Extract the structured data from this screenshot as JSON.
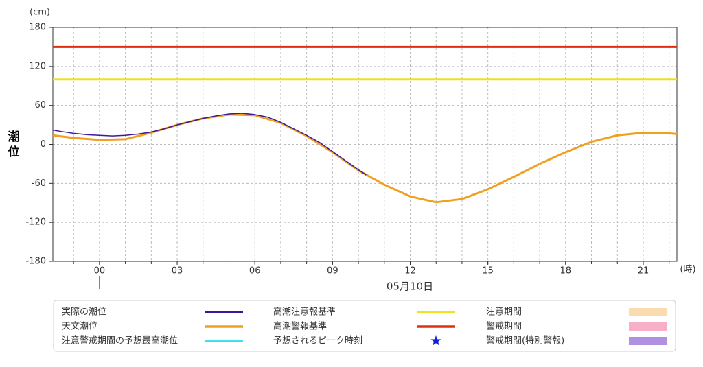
{
  "chart_data": {
    "type": "line",
    "y_label": "潮位",
    "y_unit": "(cm)",
    "x_unit": "(時)",
    "date_label": "05月10日",
    "day_start": 0,
    "xlim": [
      -1.8,
      22.3
    ],
    "xticks": [
      {
        "value": 0,
        "label": "00"
      },
      {
        "value": 3,
        "label": "03"
      },
      {
        "value": 6,
        "label": "06"
      },
      {
        "value": 9,
        "label": "09"
      },
      12,
      15,
      18,
      21
    ],
    "xgrid": [
      -1,
      0,
      1,
      2,
      3,
      4,
      5,
      6,
      7,
      8,
      9,
      10,
      11,
      12,
      13,
      14,
      15,
      16,
      17,
      18,
      19,
      20,
      21,
      22
    ],
    "ylim": [
      -180,
      180
    ],
    "yticks": [
      -180,
      -120,
      -60,
      0,
      60,
      120,
      180
    ],
    "grid": true,
    "series": [
      {
        "name": "実際の潮位",
        "color": "#3a1a9a",
        "x": [
          -1.8,
          -1.5,
          -1,
          -0.5,
          0,
          0.5,
          1,
          1.5,
          2,
          2.5,
          3,
          3.5,
          4,
          4.5,
          5,
          5.5,
          6,
          6.5,
          7,
          7.5,
          8,
          8.5,
          9,
          9.5,
          10,
          10.3
        ],
        "values": [
          22,
          20,
          17,
          15,
          14,
          13,
          14,
          16,
          19,
          24,
          30,
          35,
          40,
          44,
          47,
          48,
          46,
          42,
          34,
          24,
          14,
          3,
          -11,
          -25,
          -39,
          -47
        ]
      },
      {
        "name": "天文潮位",
        "color": "#f0a020",
        "x": [
          -1.8,
          -1,
          0,
          1,
          2,
          3,
          4,
          5,
          6,
          7,
          8,
          9,
          10,
          11,
          12,
          13,
          14,
          15,
          16,
          17,
          18,
          19,
          20,
          21,
          22,
          22.3
        ],
        "values": [
          14,
          10,
          7,
          8,
          18,
          30,
          40,
          46,
          45,
          33,
          13,
          -12,
          -40,
          -62,
          -80,
          -89,
          -84,
          -69,
          -50,
          -30,
          -12,
          4,
          14,
          18,
          17,
          16
        ]
      }
    ],
    "reference_lines": [
      {
        "name": "高潮注意報基準",
        "color": "#f0e020",
        "value": 100
      },
      {
        "name": "高潮警報基準",
        "color": "#e03010",
        "value": 150
      }
    ],
    "legend_only": [
      {
        "name": "注意警戒期間の予想最高潮位",
        "color": "#40e0f0",
        "symbol": "line"
      },
      {
        "name": "予想されるピーク時刻",
        "color": "#1020d0",
        "symbol": "star"
      },
      {
        "name": "注意期間",
        "color": "#fadcb0",
        "symbol": "rect"
      },
      {
        "name": "警戒期間",
        "color": "#f7b0c8",
        "symbol": "rect"
      },
      {
        "name": "警戒期間(特別警報)",
        "color": "#b090e0",
        "symbol": "rect"
      }
    ]
  }
}
